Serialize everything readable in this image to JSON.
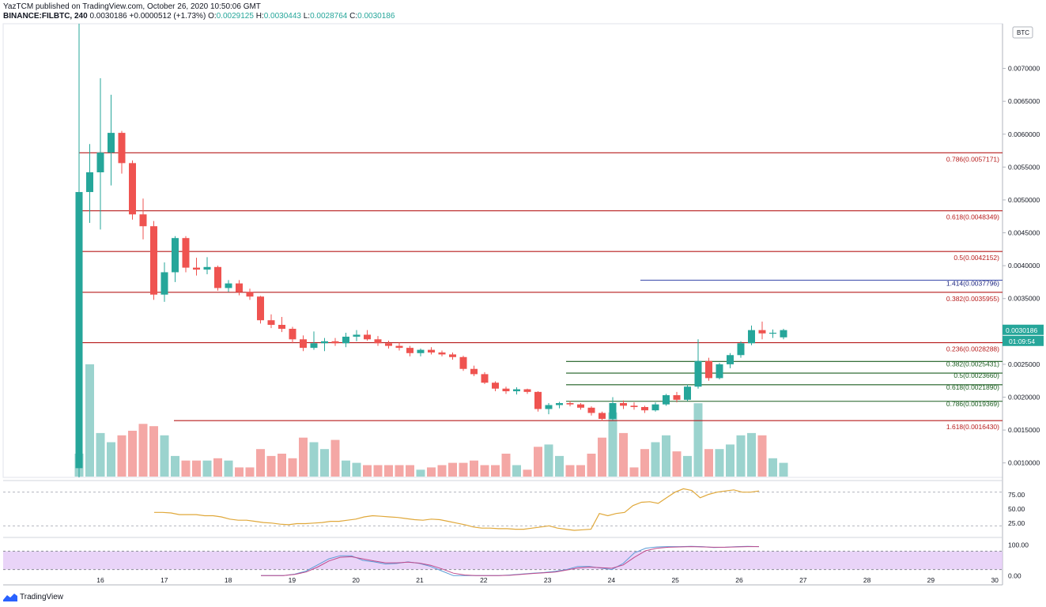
{
  "header": {
    "published_line": "YazTCM published on TradingView.com, October 26, 2020 10:50:06 GMT",
    "symbol": "BINANCE:FILBTC, 240",
    "last": "0.0030186",
    "change": "+0.0000512 (+1.73%)",
    "ohlc": {
      "o_label": "O:",
      "o": "0.0029125",
      "h_label": "H:",
      "h": "0.0030443",
      "l_label": "L:",
      "l": "0.0028764",
      "c_label": "C:",
      "c": "0.0030186"
    }
  },
  "footer": {
    "brand": "TradingView",
    "logo_icon": "tradingview-logo-icon"
  },
  "colors": {
    "up": "#26a69a",
    "down": "#ef5350",
    "up_vol": "#9bd3ce",
    "down_vol": "#f4a7a5",
    "fib_red": "#b71c1c",
    "fib_green": "#1b5e20",
    "fib_blue": "#1a237e",
    "rsi": "#e0a83a",
    "stoch_k": "#5b9bd5",
    "stoch_d": "#c04a8c",
    "stoch_band": "#e1c6f5"
  },
  "chart_data": {
    "type": "candlestick",
    "currency_badge": "BTC",
    "price_axis": {
      "range": [
        0.00078,
        0.00768
      ],
      "ticks": [
        "0.0070000",
        "0.0065000",
        "0.0060000",
        "0.0055000",
        "0.0050000",
        "0.0045000",
        "0.0040000",
        "0.0035000",
        "0.0025000",
        "0.0020000",
        "0.0015000",
        "0.0010000"
      ]
    },
    "last_price_label": "0.0030186",
    "countdown_label": "01:09:54",
    "x_axis": {
      "ticks": [
        "16",
        "17",
        "18",
        "19",
        "20",
        "21",
        "22",
        "23",
        "24",
        "25",
        "26",
        "27",
        "28",
        "29",
        "30"
      ]
    },
    "candles": [
      {
        "o": 0.00092,
        "h": 0.00768,
        "l": 0.00078,
        "c": 0.00512
      },
      {
        "o": 0.00512,
        "h": 0.00585,
        "l": 0.00465,
        "c": 0.00542
      },
      {
        "o": 0.00542,
        "h": 0.00685,
        "l": 0.00455,
        "c": 0.00572
      },
      {
        "o": 0.00572,
        "h": 0.0066,
        "l": 0.00522,
        "c": 0.00602
      },
      {
        "o": 0.00602,
        "h": 0.00605,
        "l": 0.0054,
        "c": 0.00556
      },
      {
        "o": 0.00556,
        "h": 0.0056,
        "l": 0.0047,
        "c": 0.00478
      },
      {
        "o": 0.00478,
        "h": 0.00502,
        "l": 0.0044,
        "c": 0.0046
      },
      {
        "o": 0.0046,
        "h": 0.00468,
        "l": 0.00348,
        "c": 0.00356
      },
      {
        "o": 0.00356,
        "h": 0.00405,
        "l": 0.00345,
        "c": 0.0039
      },
      {
        "o": 0.0039,
        "h": 0.00445,
        "l": 0.00375,
        "c": 0.00442
      },
      {
        "o": 0.00442,
        "h": 0.00445,
        "l": 0.0039,
        "c": 0.00397
      },
      {
        "o": 0.00397,
        "h": 0.00412,
        "l": 0.00385,
        "c": 0.00394
      },
      {
        "o": 0.00394,
        "h": 0.00413,
        "l": 0.00387,
        "c": 0.00398
      },
      {
        "o": 0.00398,
        "h": 0.004,
        "l": 0.00362,
        "c": 0.00366
      },
      {
        "o": 0.00366,
        "h": 0.00378,
        "l": 0.0036,
        "c": 0.00373
      },
      {
        "o": 0.00373,
        "h": 0.00378,
        "l": 0.00355,
        "c": 0.0036
      },
      {
        "o": 0.0036,
        "h": 0.00365,
        "l": 0.00348,
        "c": 0.00353
      },
      {
        "o": 0.00353,
        "h": 0.00354,
        "l": 0.00312,
        "c": 0.00317
      },
      {
        "o": 0.00317,
        "h": 0.00326,
        "l": 0.00305,
        "c": 0.0031
      },
      {
        "o": 0.0031,
        "h": 0.00322,
        "l": 0.00299,
        "c": 0.00304
      },
      {
        "o": 0.00304,
        "h": 0.00307,
        "l": 0.00282,
        "c": 0.00288
      },
      {
        "o": 0.00288,
        "h": 0.00294,
        "l": 0.0027,
        "c": 0.00275
      },
      {
        "o": 0.00275,
        "h": 0.003,
        "l": 0.00272,
        "c": 0.00282
      },
      {
        "o": 0.00282,
        "h": 0.0029,
        "l": 0.0027,
        "c": 0.00285
      },
      {
        "o": 0.00285,
        "h": 0.0029,
        "l": 0.00278,
        "c": 0.00282
      },
      {
        "o": 0.00282,
        "h": 0.00298,
        "l": 0.00276,
        "c": 0.00292
      },
      {
        "o": 0.00292,
        "h": 0.00302,
        "l": 0.00285,
        "c": 0.00295
      },
      {
        "o": 0.00295,
        "h": 0.00302,
        "l": 0.00286,
        "c": 0.00288
      },
      {
        "o": 0.00288,
        "h": 0.00293,
        "l": 0.00278,
        "c": 0.00282
      },
      {
        "o": 0.00282,
        "h": 0.00286,
        "l": 0.00274,
        "c": 0.00278
      },
      {
        "o": 0.00278,
        "h": 0.00283,
        "l": 0.00271,
        "c": 0.00275
      },
      {
        "o": 0.00275,
        "h": 0.00278,
        "l": 0.00262,
        "c": 0.00267
      },
      {
        "o": 0.00267,
        "h": 0.00274,
        "l": 0.00262,
        "c": 0.00272
      },
      {
        "o": 0.00272,
        "h": 0.00276,
        "l": 0.00265,
        "c": 0.00268
      },
      {
        "o": 0.00268,
        "h": 0.00271,
        "l": 0.00262,
        "c": 0.00265
      },
      {
        "o": 0.00265,
        "h": 0.00268,
        "l": 0.00257,
        "c": 0.00261
      },
      {
        "o": 0.00261,
        "h": 0.00263,
        "l": 0.0024,
        "c": 0.00243
      },
      {
        "o": 0.00243,
        "h": 0.00248,
        "l": 0.00232,
        "c": 0.00235
      },
      {
        "o": 0.00235,
        "h": 0.00238,
        "l": 0.0022,
        "c": 0.00222
      },
      {
        "o": 0.00222,
        "h": 0.00224,
        "l": 0.00209,
        "c": 0.00213
      },
      {
        "o": 0.00213,
        "h": 0.00216,
        "l": 0.00205,
        "c": 0.00209
      },
      {
        "o": 0.00209,
        "h": 0.00215,
        "l": 0.00204,
        "c": 0.00212
      },
      {
        "o": 0.00212,
        "h": 0.00213,
        "l": 0.00205,
        "c": 0.00208
      },
      {
        "o": 0.00208,
        "h": 0.00209,
        "l": 0.00178,
        "c": 0.00182
      },
      {
        "o": 0.00182,
        "h": 0.00191,
        "l": 0.00174,
        "c": 0.00188
      },
      {
        "o": 0.00188,
        "h": 0.00193,
        "l": 0.00183,
        "c": 0.00191
      },
      {
        "o": 0.00191,
        "h": 0.00194,
        "l": 0.00186,
        "c": 0.00189
      },
      {
        "o": 0.00189,
        "h": 0.00191,
        "l": 0.00181,
        "c": 0.00184
      },
      {
        "o": 0.00184,
        "h": 0.00186,
        "l": 0.00172,
        "c": 0.00176
      },
      {
        "o": 0.00176,
        "h": 0.00178,
        "l": 0.00164,
        "c": 0.00167
      },
      {
        "o": 0.00167,
        "h": 0.002,
        "l": 0.00165,
        "c": 0.00191
      },
      {
        "o": 0.00191,
        "h": 0.00195,
        "l": 0.00182,
        "c": 0.00187
      },
      {
        "o": 0.00187,
        "h": 0.00192,
        "l": 0.00181,
        "c": 0.00185
      },
      {
        "o": 0.00185,
        "h": 0.00187,
        "l": 0.00176,
        "c": 0.0018
      },
      {
        "o": 0.0018,
        "h": 0.00192,
        "l": 0.00178,
        "c": 0.00189
      },
      {
        "o": 0.00189,
        "h": 0.00205,
        "l": 0.00187,
        "c": 0.00203
      },
      {
        "o": 0.00203,
        "h": 0.00208,
        "l": 0.00192,
        "c": 0.00196
      },
      {
        "o": 0.00196,
        "h": 0.00219,
        "l": 0.00194,
        "c": 0.00216
      },
      {
        "o": 0.00216,
        "h": 0.00288,
        "l": 0.00213,
        "c": 0.00255
      },
      {
        "o": 0.00255,
        "h": 0.0026,
        "l": 0.00225,
        "c": 0.00229
      },
      {
        "o": 0.00229,
        "h": 0.00252,
        "l": 0.00227,
        "c": 0.0025
      },
      {
        "o": 0.0025,
        "h": 0.00267,
        "l": 0.00244,
        "c": 0.00264
      },
      {
        "o": 0.00264,
        "h": 0.00285,
        "l": 0.0026,
        "c": 0.00282
      },
      {
        "o": 0.00282,
        "h": 0.00309,
        "l": 0.00279,
        "c": 0.00302
      },
      {
        "o": 0.00302,
        "h": 0.00315,
        "l": 0.00288,
        "c": 0.00297
      },
      {
        "o": 0.00297,
        "h": 0.00303,
        "l": 0.0029,
        "c": 0.00298
      },
      {
        "o": 0.00291,
        "h": 0.00304,
        "l": 0.00288,
        "c": 0.00302
      }
    ],
    "volume": [
      0.05,
      0.245,
      0.095,
      0.075,
      0.09,
      0.1,
      0.115,
      0.11,
      0.09,
      0.045,
      0.035,
      0.035,
      0.035,
      0.04,
      0.035,
      0.02,
      0.02,
      0.06,
      0.045,
      0.05,
      0.04,
      0.085,
      0.075,
      0.06,
      0.08,
      0.035,
      0.03,
      0.025,
      0.025,
      0.025,
      0.025,
      0.025,
      0.015,
      0.02,
      0.025,
      0.03,
      0.03,
      0.035,
      0.025,
      0.025,
      0.05,
      0.025,
      0.015,
      0.065,
      0.07,
      0.045,
      0.025,
      0.025,
      0.05,
      0.085,
      0.14,
      0.095,
      0.02,
      0.06,
      0.075,
      0.09,
      0.055,
      0.045,
      0.16,
      0.06,
      0.06,
      0.07,
      0.09,
      0.095,
      0.09,
      0.04,
      0.03
    ],
    "fib_levels_red": [
      {
        "label": "0.786(0.0057171)",
        "price": 0.0057171
      },
      {
        "label": "0.618(0.0048349)",
        "price": 0.0048349
      },
      {
        "label": "0.5(0.0042152)",
        "price": 0.0042152
      },
      {
        "label": "0.382(0.0035955)",
        "price": 0.0035955
      },
      {
        "label": "0.236(0.0028288)",
        "price": 0.0028288
      },
      {
        "label": "1.618(0.0016430)",
        "price": 0.001643
      }
    ],
    "fib_levels_green": [
      {
        "label": "0.382(0.0025431)",
        "price": 0.0025431
      },
      {
        "label": "0.5(0.0023660)",
        "price": 0.002366
      },
      {
        "label": "0.618(0.0021890)",
        "price": 0.002189
      },
      {
        "label": "0.786(0.0019369)",
        "price": 0.0019369
      }
    ],
    "fib_level_blue": {
      "label": "1.414(0.0037796)",
      "price": 0.0037796
    },
    "rsi": {
      "ticks": [
        "75.00",
        "50.00",
        "25.00"
      ],
      "range": [
        5,
        95
      ],
      "values": [
        44,
        44,
        43,
        40,
        40,
        40,
        38,
        38,
        36,
        32,
        30,
        30,
        28,
        26,
        25,
        23,
        22,
        24,
        24,
        25,
        26,
        28,
        28,
        30,
        32,
        36,
        38,
        37,
        36,
        35,
        33,
        31,
        30,
        32,
        31,
        28,
        25,
        22,
        18,
        16,
        16,
        15,
        15,
        14,
        14,
        16,
        18,
        20,
        16,
        14,
        12,
        13,
        14,
        42,
        38,
        42,
        44,
        56,
        62,
        63,
        60,
        70,
        80,
        86,
        83,
        70,
        76,
        80,
        82,
        84,
        80,
        80,
        82
      ]
    },
    "stoch": {
      "ticks": [
        "100.00",
        "0.00"
      ],
      "range": [
        -20,
        120
      ],
      "k": [
        0,
        0,
        0,
        5,
        15,
        35,
        55,
        65,
        65,
        50,
        45,
        38,
        40,
        45,
        40,
        30,
        15,
        0,
        0,
        0,
        0,
        0,
        2,
        5,
        8,
        10,
        14,
        20,
        30,
        30,
        25,
        20,
        40,
        75,
        90,
        94,
        95,
        95,
        96,
        95,
        92,
        93,
        95,
        96,
        95
      ],
      "d": [
        0,
        0,
        0,
        4,
        12,
        28,
        48,
        60,
        62,
        55,
        48,
        42,
        42,
        44,
        41,
        34,
        22,
        8,
        2,
        0,
        0,
        0,
        1,
        4,
        7,
        9,
        12,
        18,
        25,
        28,
        26,
        24,
        35,
        60,
        82,
        90,
        93,
        94,
        95,
        94,
        93,
        93,
        94,
        95,
        95
      ]
    }
  }
}
